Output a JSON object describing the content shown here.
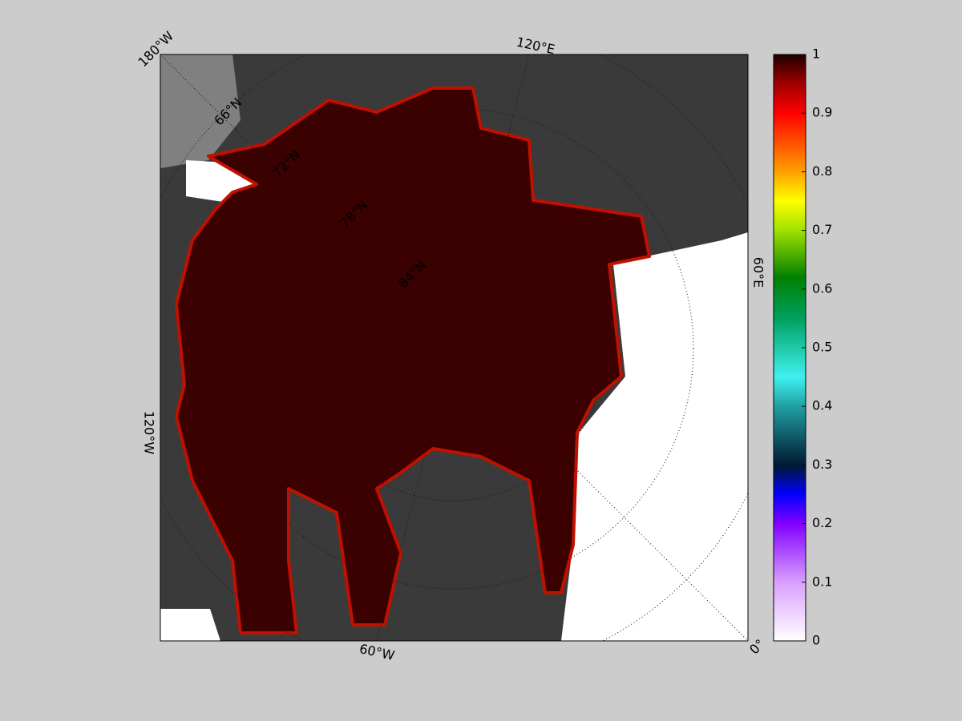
{
  "map": {
    "lon_labels": [
      "180°W",
      "120°E",
      "60°E",
      "0°",
      "60°W",
      "120°W"
    ],
    "lat_labels": [
      "66°N",
      "72°N",
      "78°N",
      "84°N"
    ]
  },
  "colorbar": {
    "lim": [
      0,
      1
    ],
    "ticks": [
      0,
      0.1,
      0.2,
      0.3,
      0.4,
      0.5,
      0.6,
      0.7,
      0.8,
      0.9,
      1
    ]
  }
}
